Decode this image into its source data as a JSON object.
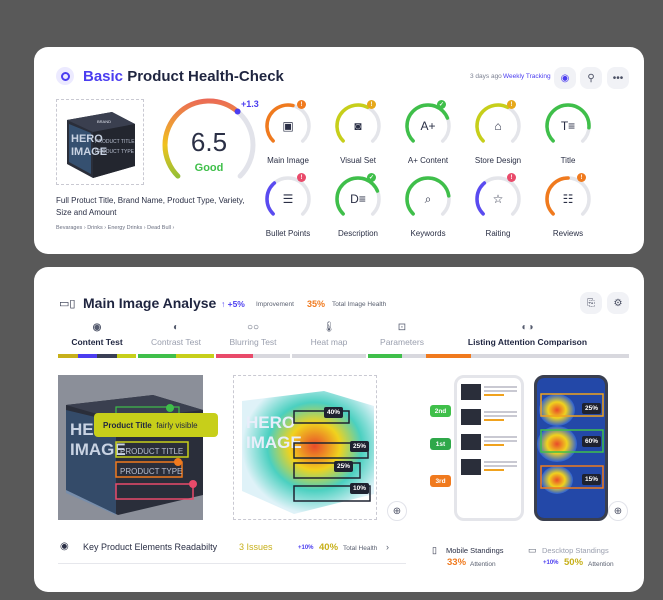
{
  "card1": {
    "title_accent": "Basic",
    "title_rest": "Product Health-Check",
    "meta_time": "3 days ago",
    "meta_link": "Weekly Tracking",
    "product_box": {
      "line1": "HERO",
      "line2": "IMAGE",
      "line3": "PRODUCT TITLE",
      "line4": "PRODUCT TYPE",
      "brand": "BRAND"
    },
    "product_description": "Full Protuct Title, Brand Name, Product Type, Variety, Size and Amount",
    "breadcrumb": [
      "Bevarages",
      "Drinks",
      "Energy Drinks",
      "Dead Bull"
    ],
    "score": {
      "value": "6.5",
      "label": "Good",
      "delta": "+1.3",
      "fraction": 0.65
    },
    "metrics": [
      {
        "label": "Main Image",
        "color": "#f07a1e",
        "badge": "!",
        "badge_color": "#f07a1e",
        "fill": 0.55,
        "icon": "image-icon",
        "glyph": "▣"
      },
      {
        "label": "Visual Set",
        "color": "#c7cf1a",
        "badge": "!",
        "badge_color": "#e6a81a",
        "fill": 0.6,
        "icon": "camera-icon",
        "glyph": "◙"
      },
      {
        "label": "A+ Content",
        "color": "#3fbf4a",
        "badge": "✓",
        "badge_color": "#3fbf4a",
        "fill": 0.75,
        "icon": "a-plus-icon",
        "glyph": "A+"
      },
      {
        "label": "Store Design",
        "color": "#c7cf1a",
        "badge": "!",
        "badge_color": "#e6a81a",
        "fill": 0.6,
        "icon": "store-icon",
        "glyph": "⌂"
      },
      {
        "label": "Title",
        "color": "#3fbf4a",
        "badge": "",
        "badge_color": "#3fbf4a",
        "fill": 0.85,
        "icon": "title-icon",
        "glyph": "T≡"
      },
      {
        "label": "Bullet Points",
        "color": "#5a4bf0",
        "badge": "!",
        "badge_color": "#e94a6a",
        "fill": 0.35,
        "icon": "list-icon",
        "glyph": "☰"
      },
      {
        "label": "Description",
        "color": "#3fbf4a",
        "badge": "✓",
        "badge_color": "#3fbf4a",
        "fill": 0.75,
        "icon": "description-icon",
        "glyph": "D≡"
      },
      {
        "label": "Keywords",
        "color": "#3fbf4a",
        "badge": "",
        "badge_color": "#3fbf4a",
        "fill": 0.8,
        "icon": "search-icon",
        "glyph": "⌕"
      },
      {
        "label": "Raiting",
        "color": "#5a4bf0",
        "badge": "!",
        "badge_color": "#e94a6a",
        "fill": 0.35,
        "icon": "star-icon",
        "glyph": "☆"
      },
      {
        "label": "Reviews",
        "color": "#f07a1e",
        "badge": "!",
        "badge_color": "#f07a1e",
        "fill": 0.5,
        "icon": "reviews-icon",
        "glyph": "☷"
      }
    ]
  },
  "card2": {
    "title": "Main Image Analyse",
    "improvement_value": "↑ +5%",
    "improvement_label": "Improvement",
    "health_value": "35%",
    "health_label": "Total Image Health",
    "tabs": [
      {
        "label": "Content Test",
        "icon": "eye-icon",
        "glyph": "◉",
        "active": true,
        "bar_colors": [
          "#c7b01a",
          "#4b3df0",
          "#3a3f55",
          "#c7cf1a"
        ]
      },
      {
        "label": "Contrast Test",
        "icon": "contrast-icon",
        "glyph": "◐",
        "active": false,
        "bar_colors": [
          "#3fbf4a",
          "#c7cf1a"
        ]
      },
      {
        "label": "Blurring Test",
        "icon": "glasses-icon",
        "glyph": "○○",
        "active": false,
        "bar_colors": [
          "#e94a6a",
          "#d8d8de"
        ]
      },
      {
        "label": "Heat map",
        "icon": "thermometer-icon",
        "glyph": "🌡",
        "active": false,
        "bar_colors": [
          "#d8d8de"
        ]
      },
      {
        "label": "Parameters",
        "icon": "parameters-icon",
        "glyph": "⊡",
        "active": false,
        "bar_colors": [
          "#3fbf4a",
          "#d8d8de"
        ]
      }
    ],
    "listing_tab": {
      "label": "Listing Attention Comparison",
      "icon": "compare-icon",
      "glyph": "◐◑"
    },
    "tooltip": {
      "title": "Product Title",
      "status": "fairly visible"
    },
    "heat_tags": [
      "40%",
      "25%",
      "25%",
      "10%"
    ],
    "ranks": [
      {
        "label": "2nd",
        "color": "#3fbf4a"
      },
      {
        "label": "1st",
        "color": "#2fa84a"
      },
      {
        "label": "3rd",
        "color": "#f07a1e"
      }
    ],
    "phone_tags": [
      "25%",
      "60%",
      "15%"
    ],
    "readability": {
      "label": "Key Product Elements Readabilty",
      "issues": "3 Issues",
      "delta": "+10%",
      "value": "40%",
      "total_label": "Total Health"
    },
    "mobile": {
      "label": "Mobile Standings",
      "value": "33%",
      "sub": "Attention"
    },
    "desktop": {
      "label": "Descktop Standings",
      "delta": "+10%",
      "value": "50%",
      "sub": "Attention"
    }
  },
  "colors": {
    "accent": "#4b3df0",
    "good": "#3fbf4a",
    "warn": "#f07a1e",
    "alert": "#e94a6a",
    "yellow": "#c7b01a"
  }
}
